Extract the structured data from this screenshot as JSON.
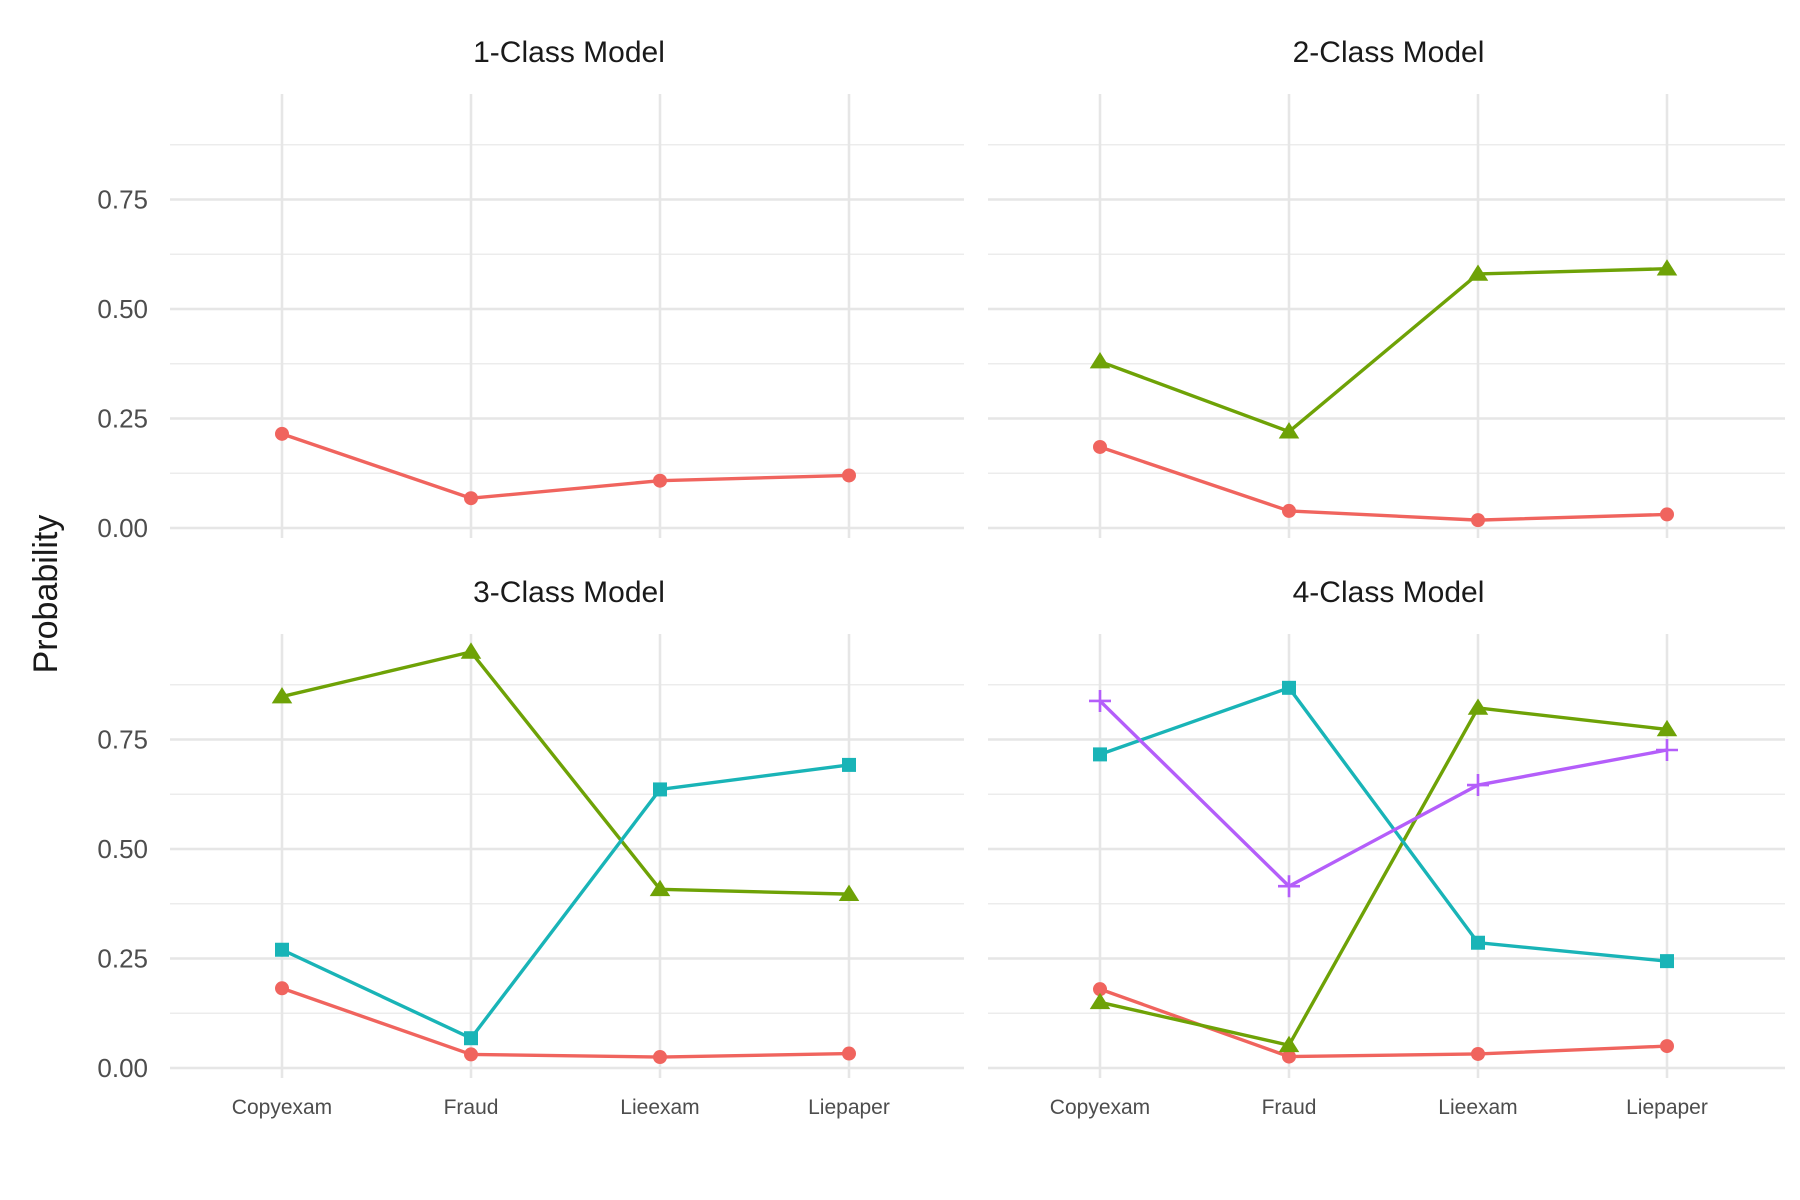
{
  "chart_data": {
    "type": "line",
    "ylabel": "Probability",
    "categories": [
      "Copyexam",
      "Fraud",
      "Lieexam",
      "Liepaper"
    ],
    "ylim": [
      0,
      1
    ],
    "yticks": [
      "0.00",
      "0.25",
      "0.50",
      "0.75"
    ],
    "ytick_values": [
      0,
      0.25,
      0.5,
      0.75
    ],
    "grid": true,
    "legend": "none",
    "colors": {
      "class1": "#F0645E",
      "class2": "#6EA206",
      "class3": "#19B4B7",
      "class4": "#B45EFA"
    },
    "panels": [
      {
        "title": "1-Class Model",
        "series": [
          {
            "class": "class1",
            "shape": "circle",
            "values": [
              0.215,
              0.068,
              0.108,
              0.12
            ]
          }
        ]
      },
      {
        "title": "2-Class Model",
        "series": [
          {
            "class": "class1",
            "shape": "circle",
            "values": [
              0.185,
              0.039,
              0.018,
              0.031
            ]
          },
          {
            "class": "class2",
            "shape": "triangle",
            "values": [
              0.38,
              0.22,
              0.58,
              0.592
            ]
          }
        ]
      },
      {
        "title": "3-Class Model",
        "series": [
          {
            "class": "class1",
            "shape": "circle",
            "values": [
              0.182,
              0.031,
              0.025,
              0.033
            ]
          },
          {
            "class": "class2",
            "shape": "triangle",
            "values": [
              0.848,
              0.95,
              0.408,
              0.397
            ]
          },
          {
            "class": "class3",
            "shape": "square",
            "values": [
              0.27,
              0.068,
              0.636,
              0.692
            ]
          }
        ]
      },
      {
        "title": "4-Class Model",
        "series": [
          {
            "class": "class1",
            "shape": "circle",
            "values": [
              0.18,
              0.026,
              0.032,
              0.05
            ]
          },
          {
            "class": "class2",
            "shape": "triangle",
            "values": [
              0.15,
              0.052,
              0.822,
              0.773
            ]
          },
          {
            "class": "class3",
            "shape": "square",
            "values": [
              0.716,
              0.868,
              0.286,
              0.244
            ]
          },
          {
            "class": "class4",
            "shape": "plus",
            "values": [
              0.838,
              0.415,
              0.646,
              0.726
            ]
          }
        ]
      }
    ]
  }
}
